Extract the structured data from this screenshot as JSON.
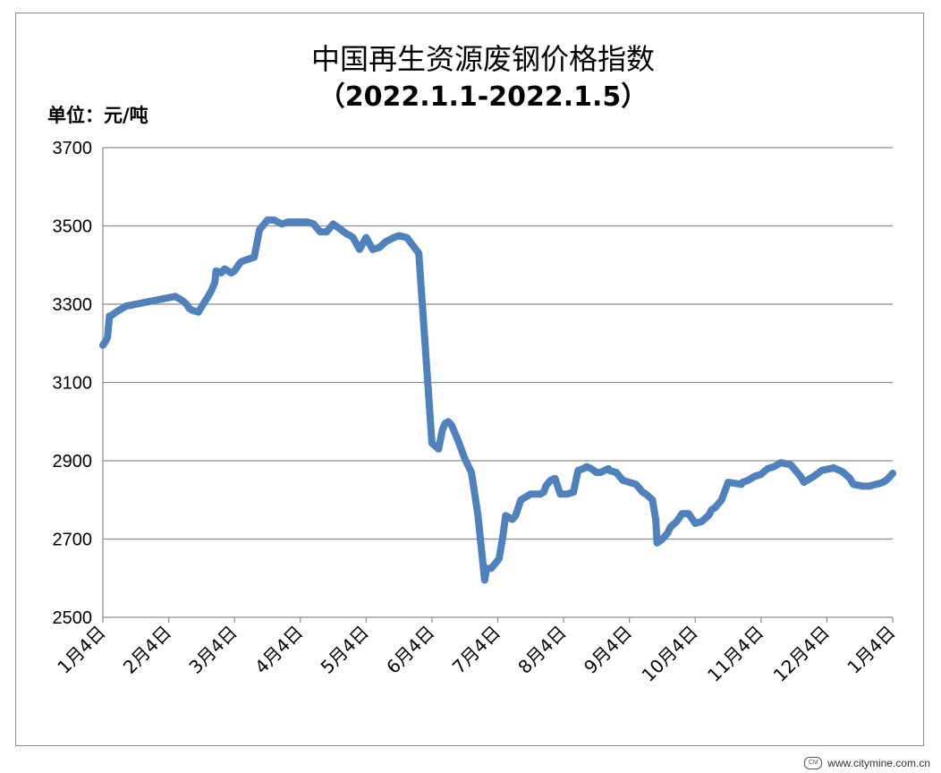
{
  "chart_data": {
    "type": "line",
    "title": "中国再生资源废钢价格指数",
    "subtitle": "（2022.1.1-2022.1.5）",
    "unit_label": "单位：元/吨",
    "xlabel": "",
    "ylabel": "",
    "ylim": [
      2500,
      3700
    ],
    "yticks": [
      "2500",
      "2700",
      "2900",
      "3100",
      "3300",
      "3500",
      "3700"
    ],
    "xtick_labels": [
      "1月4日",
      "2月4日",
      "3月4日",
      "4月4日",
      "5月4日",
      "6月4日",
      "7月4日",
      "8月4日",
      "9月4日",
      "10月4日",
      "11月4日",
      "12月4日",
      "1月4日"
    ],
    "grid": true,
    "line_color": "#4f81bd",
    "series": [
      {
        "x": [
          0,
          0.04,
          0.07,
          0.1,
          0.12,
          0.2,
          0.25,
          0.3,
          0.35,
          1.1,
          1.2,
          1.27,
          1.31,
          1.35,
          1.45,
          1.6,
          1.65,
          1.7,
          1.72,
          1.8,
          1.85,
          1.95,
          2.0,
          2.08,
          2.12,
          2.3,
          2.38,
          2.5,
          2.56,
          2.6,
          2.72,
          2.82,
          3.1,
          3.2,
          3.3,
          3.4,
          3.45,
          3.5,
          3.62,
          3.7,
          3.76,
          3.8,
          3.9,
          4.0,
          4.1,
          4.2,
          4.3,
          4.42,
          4.5,
          4.62,
          4.8,
          5.0,
          5.1,
          5.16,
          5.2,
          5.25,
          5.3,
          5.4,
          5.5,
          5.6,
          5.7,
          5.8,
          5.83,
          5.9,
          5.95,
          6.02,
          6.07,
          6.12,
          6.22,
          6.27,
          6.35,
          6.5,
          6.65,
          6.7,
          6.73,
          6.8,
          6.87,
          6.95,
          7.05,
          7.15,
          7.22,
          7.3,
          7.35,
          7.42,
          7.5,
          7.56,
          7.62,
          7.68,
          7.7,
          7.8,
          7.9,
          8.1,
          8.2,
          8.25,
          8.35,
          8.4,
          8.42,
          8.5,
          8.58,
          8.62,
          8.72,
          8.8,
          8.9,
          9.0,
          9.1,
          9.2,
          9.22,
          9.25,
          9.3,
          9.4,
          9.5,
          9.7,
          9.72,
          9.8,
          9.9,
          10.0,
          10.03,
          10.1,
          10.2,
          10.3,
          10.45,
          10.5,
          10.55,
          10.6,
          10.65,
          10.7,
          10.75,
          10.8,
          10.88,
          10.92,
          11.05,
          11.1,
          11.2,
          11.25,
          11.35,
          11.4,
          11.55,
          11.65,
          11.7,
          11.75,
          11.8,
          11.85,
          11.9,
          11.95,
          12.0
        ],
        "y": [
          3195,
          3205,
          3215,
          3270,
          3270,
          3280,
          3285,
          3290,
          3295,
          3320,
          3310,
          3300,
          3290,
          3285,
          3280,
          3320,
          3335,
          3355,
          3385,
          3380,
          3390,
          3380,
          3385,
          3405,
          3410,
          3420,
          3490,
          3515,
          3515,
          3515,
          3505,
          3510,
          3510,
          3505,
          3485,
          3485,
          3495,
          3505,
          3490,
          3480,
          3475,
          3470,
          3440,
          3470,
          3440,
          3445,
          3460,
          3470,
          3475,
          3470,
          3430,
          2945,
          2930,
          2980,
          2995,
          3000,
          2990,
          2950,
          2905,
          2870,
          2760,
          2595,
          2625,
          2625,
          2635,
          2650,
          2700,
          2760,
          2750,
          2760,
          2800,
          2815,
          2815,
          2820,
          2835,
          2850,
          2855,
          2815,
          2815,
          2820,
          2875,
          2880,
          2885,
          2880,
          2870,
          2870,
          2875,
          2880,
          2875,
          2870,
          2850,
          2840,
          2820,
          2815,
          2800,
          2750,
          2690,
          2700,
          2715,
          2730,
          2745,
          2765,
          2765,
          2740,
          2745,
          2760,
          2765,
          2775,
          2780,
          2800,
          2845,
          2840,
          2845,
          2850,
          2860,
          2865,
          2870,
          2880,
          2885,
          2895,
          2890,
          2880,
          2870,
          2860,
          2845,
          2850,
          2855,
          2860,
          2870,
          2875,
          2880,
          2882,
          2875,
          2870,
          2855,
          2840,
          2835,
          2835,
          2838,
          2840,
          2842,
          2845,
          2850,
          2858,
          2868
        ]
      }
    ]
  },
  "watermark": {
    "logo_text": "CM",
    "text": "www.citymine.com.cn"
  }
}
